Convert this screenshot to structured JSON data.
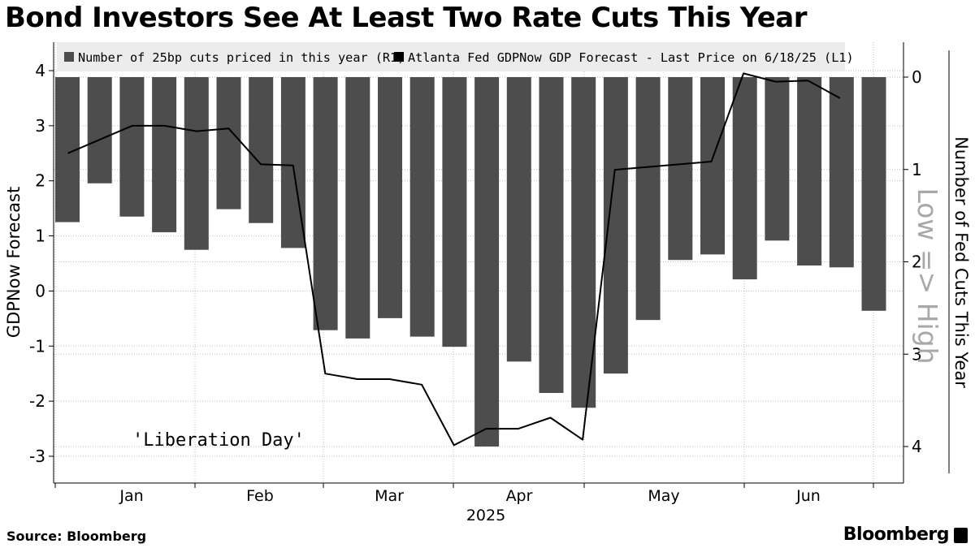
{
  "title": "Bond Investors See At Least Two Rate Cuts This Year",
  "footer": {
    "source": "Source:  Bloomberg",
    "logo": "Bloomberg"
  },
  "colors": {
    "bars": "#4d4d4d",
    "line": "#000000",
    "legend_bg": "#ececec",
    "grid": "#bdbdbd"
  },
  "chart_data": {
    "type": "bar+line",
    "legend": [
      {
        "label": "Number of 25bp cuts priced in this year (R1)",
        "kind": "bar"
      },
      {
        "label": "Atlanta Fed GDPNow GDP Forecast - Last Price on 6/18/25 (L1)",
        "kind": "line"
      }
    ],
    "ylabel_left": "GDPNow Forecast",
    "ylabel_right": "Number of Fed Cuts This Year",
    "right_axis_note": "Low => High",
    "annotation": "'Liberation Day'",
    "y_left": {
      "min": -3.5,
      "max": 4.15,
      "ticks": [
        4,
        3,
        2,
        1,
        0,
        -1,
        -2,
        -3
      ]
    },
    "y_right": {
      "inverted": true,
      "min": 0,
      "max": 4.4,
      "ticks": [
        0,
        1,
        2,
        3,
        4
      ]
    },
    "x_month_labels": [
      "Jan",
      "Feb",
      "Mar",
      "Apr",
      "May",
      "Jun"
    ],
    "x_year_label": "2025",
    "bars_cuts": [
      1.57,
      1.15,
      1.51,
      1.68,
      1.87,
      1.43,
      1.58,
      1.85,
      2.74,
      2.83,
      2.61,
      2.81,
      2.92,
      4.0,
      3.08,
      3.42,
      3.58,
      3.21,
      2.63,
      1.98,
      1.92,
      2.19,
      1.77,
      2.04,
      2.06,
      2.53
    ],
    "gdpnow_line": [
      2.5,
      2.75,
      3.0,
      3.0,
      2.9,
      2.95,
      2.3,
      2.28,
      -1.5,
      -1.6,
      -1.6,
      -1.7,
      -2.8,
      -2.5,
      -2.5,
      -2.3,
      -2.7,
      2.2,
      2.25,
      2.3,
      2.35,
      3.95,
      3.8,
      3.82,
      3.5
    ]
  }
}
